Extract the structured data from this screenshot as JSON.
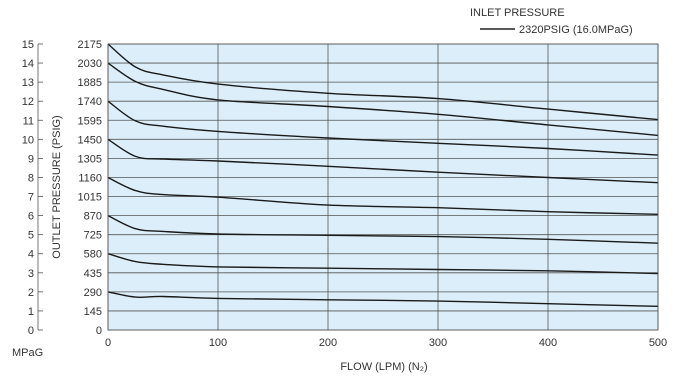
{
  "chart_data": {
    "type": "line",
    "title": "",
    "legend": {
      "title": "INLET PRESSURE",
      "entry": "2320PSIG (16.0MPaG)",
      "placement": "top-right"
    },
    "xlabel": "FLOW (LPM) (N₂)",
    "ylabel": "OUTLET PRESSURE (PSIG)",
    "secondary_ylabel": "MPaG",
    "xlim": [
      0,
      500
    ],
    "ylim": [
      0,
      2175
    ],
    "secondary_ylim": [
      0,
      15
    ],
    "x_ticks": [
      "0",
      "100",
      "200",
      "300",
      "400",
      "500"
    ],
    "y_ticks": [
      "0",
      "145",
      "290",
      "435",
      "580",
      "725",
      "870",
      "1015",
      "1160",
      "1305",
      "1450",
      "1595",
      "1740",
      "1885",
      "2030",
      "2175"
    ],
    "secondary_y_ticks": [
      "0",
      "1",
      "2",
      "3",
      "4",
      "5",
      "6",
      "7",
      "8",
      "9",
      "10",
      "11",
      "12",
      "13",
      "14",
      "15"
    ],
    "grid": true,
    "series": [
      {
        "x": [
          0,
          25,
          50,
          100,
          200,
          300,
          400,
          500
        ],
        "y": [
          2175,
          2000,
          1940,
          1870,
          1800,
          1760,
          1680,
          1600
        ]
      },
      {
        "x": [
          0,
          25,
          50,
          100,
          200,
          300,
          400,
          500
        ],
        "y": [
          2030,
          1890,
          1830,
          1750,
          1700,
          1640,
          1560,
          1480
        ]
      },
      {
        "x": [
          0,
          25,
          50,
          100,
          200,
          300,
          400,
          500
        ],
        "y": [
          1740,
          1590,
          1550,
          1510,
          1460,
          1420,
          1380,
          1330
        ]
      },
      {
        "x": [
          0,
          25,
          50,
          100,
          200,
          300,
          400,
          500
        ],
        "y": [
          1450,
          1320,
          1300,
          1285,
          1245,
          1200,
          1160,
          1120
        ]
      },
      {
        "x": [
          0,
          25,
          50,
          100,
          200,
          300,
          400,
          500
        ],
        "y": [
          1160,
          1060,
          1030,
          1010,
          950,
          930,
          900,
          880
        ]
      },
      {
        "x": [
          0,
          25,
          50,
          100,
          200,
          300,
          400,
          500
        ],
        "y": [
          870,
          770,
          750,
          730,
          720,
          710,
          690,
          660
        ]
      },
      {
        "x": [
          0,
          25,
          50,
          100,
          200,
          300,
          400,
          500
        ],
        "y": [
          580,
          520,
          500,
          480,
          470,
          460,
          450,
          430
        ]
      },
      {
        "x": [
          0,
          25,
          50,
          100,
          200,
          300,
          400,
          500
        ],
        "y": [
          290,
          250,
          255,
          240,
          230,
          220,
          200,
          180
        ]
      }
    ]
  }
}
